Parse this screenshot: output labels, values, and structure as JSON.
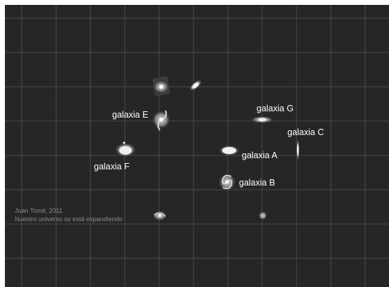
{
  "labels": {
    "a": "galaxia A",
    "b": "galaxia B",
    "c": "galaxia C",
    "e": "galaxia E",
    "f": "galaxia F",
    "g": "galaxia G"
  },
  "credit": {
    "author": "Juan Tomé, 2011",
    "caption": "Nuestro universo se está expandiendo"
  },
  "colors": {
    "background": "#262626",
    "grid": "#4a4a4a",
    "label": "#ffffff",
    "credit": "#8a8a8a"
  }
}
